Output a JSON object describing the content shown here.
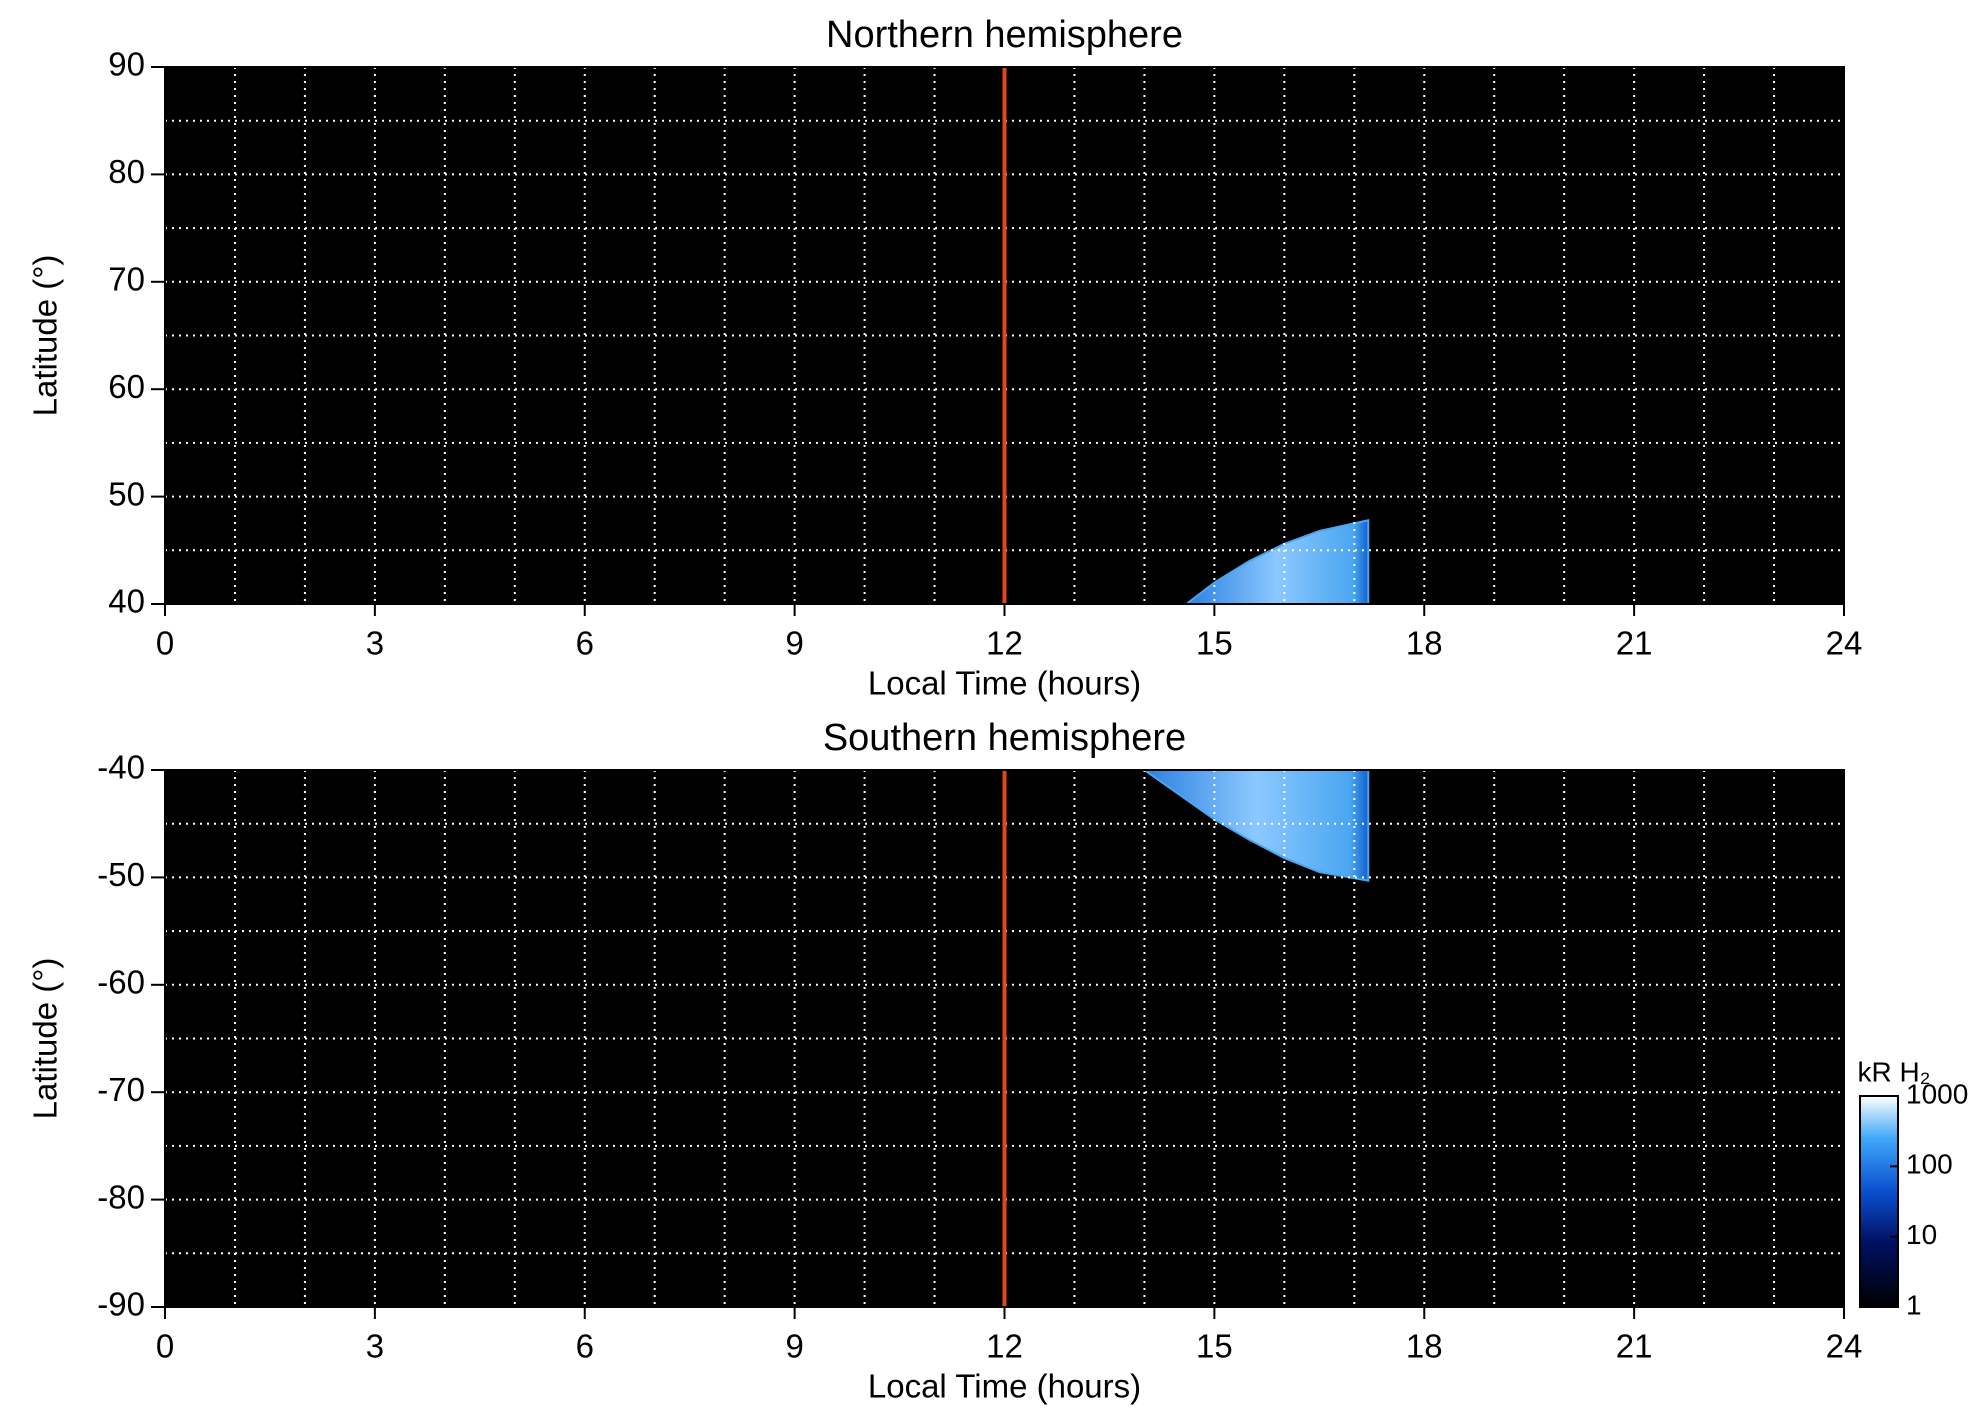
{
  "chart_data": [
    {
      "type": "heatmap",
      "title": "Northern hemisphere",
      "xlabel": "Local Time (hours)",
      "ylabel": "Latitude (°)",
      "xlim": [
        0,
        24
      ],
      "xticks": [
        0,
        3,
        6,
        9,
        12,
        15,
        18,
        21,
        24
      ],
      "ylim": [
        40,
        90
      ],
      "yticks": [
        40,
        50,
        60,
        70,
        80,
        90
      ],
      "xgrid": [
        1,
        2,
        3,
        4,
        5,
        6,
        7,
        8,
        9,
        10,
        11,
        12,
        13,
        14,
        15,
        16,
        17,
        18,
        19,
        20,
        21,
        22,
        23
      ],
      "ygrid": [
        45,
        50,
        55,
        60,
        65,
        70,
        75,
        80,
        85
      ],
      "vline": {
        "x": 12,
        "color": "#e0481e"
      },
      "region": {
        "x": [
          14.6,
          15,
          15.5,
          16,
          16.5,
          17.2,
          17.2
        ],
        "y": [
          40,
          42,
          44,
          45.6,
          46.8,
          47.8,
          40
        ],
        "color": "#4aa6f0"
      }
    },
    {
      "type": "heatmap",
      "title": "Southern hemisphere",
      "xlabel": "Local Time (hours)",
      "ylabel": "Latitude (°)",
      "xlim": [
        0,
        24
      ],
      "xticks": [
        0,
        3,
        6,
        9,
        12,
        15,
        18,
        21,
        24
      ],
      "ylim": [
        -90,
        -40
      ],
      "yticks": [
        -90,
        -80,
        -70,
        -60,
        -50,
        -40
      ],
      "xgrid": [
        1,
        2,
        3,
        4,
        5,
        6,
        7,
        8,
        9,
        10,
        11,
        12,
        13,
        14,
        15,
        16,
        17,
        18,
        19,
        20,
        21,
        22,
        23
      ],
      "ygrid": [
        -85,
        -80,
        -75,
        -70,
        -65,
        -60,
        -55,
        -50,
        -45
      ],
      "vline": {
        "x": 12,
        "color": "#e0481e"
      },
      "region": {
        "x": [
          14,
          14.5,
          15,
          15.5,
          16,
          16.5,
          17.2,
          17.2
        ],
        "y": [
          -40,
          -42.3,
          -44.6,
          -46.5,
          -48.2,
          -49.5,
          -50.3,
          -40
        ],
        "color": "#4aa6f0"
      },
      "colorbar": {
        "label": "kR H₂",
        "lim": [
          1,
          1000
        ],
        "ticks": [
          1,
          10,
          100,
          1000
        ],
        "log": true
      }
    }
  ]
}
